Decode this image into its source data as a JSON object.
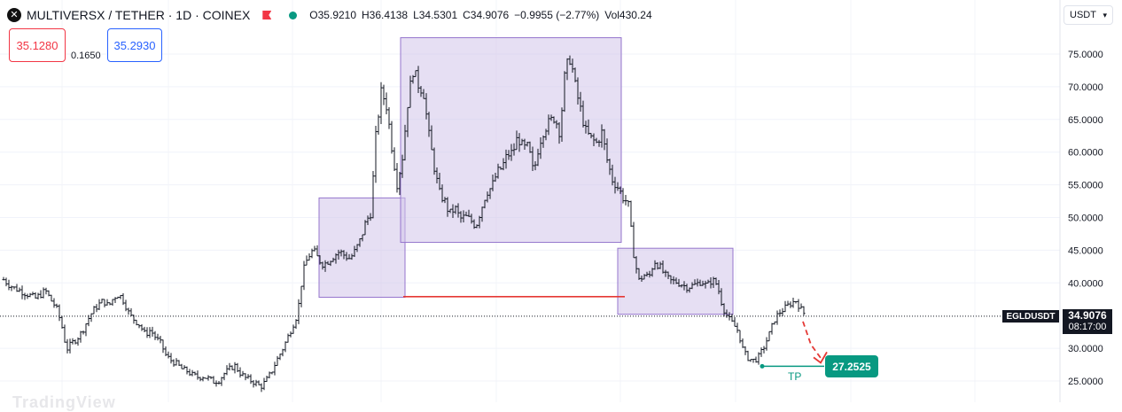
{
  "header": {
    "title": "MULTIVERSX / TETHER · 1D · COINEX",
    "logo_icon": "multiversx-logo-icon",
    "ohlc": {
      "o": "O35.9210",
      "h": "H36.4138",
      "l": "L34.5301",
      "c": "C34.9076",
      "chg": "−0.9955 (−2.77%)",
      "vol": "Vol430.24"
    }
  },
  "trade": {
    "sell": "35.1280",
    "spread": "0.1650",
    "buy": "35.2930"
  },
  "currency": {
    "label": "USDT",
    "icon": "chevron-down-icon"
  },
  "symbol_label": "EGLDUSDT",
  "last_price": "34.9076",
  "countdown": "08:17:00",
  "tp_price": "27.2525",
  "tp_label": "TP",
  "watermark": "TradingView",
  "colors": {
    "up": "#089981",
    "down": "#f23645",
    "box_fill": "#d1c4e9",
    "box_stroke": "#9575cd",
    "line": "#e53935",
    "bar": "#131722"
  },
  "chart_data": {
    "type": "ohlc",
    "y_ticks": [
      75,
      70,
      65,
      60,
      55,
      50,
      45,
      40,
      30,
      25
    ],
    "y_tick_labels": [
      "75.0000",
      "70.0000",
      "65.0000",
      "60.0000",
      "55.0000",
      "50.0000",
      "45.0000",
      "40.0000",
      "30.0000",
      "25.0000"
    ],
    "ylim": [
      24,
      80
    ],
    "last_close": 34.9076,
    "price_path": [
      40.5,
      39.8,
      39.2,
      38.9,
      38.5,
      38.1,
      37.6,
      38.2,
      38.8,
      37.4,
      36.3,
      33.8,
      29.8,
      30.8,
      31.5,
      32.6,
      34.3,
      35.7,
      36.6,
      37.3,
      36.4,
      37.8,
      38.3,
      37.1,
      35.1,
      34.3,
      33.5,
      32.1,
      32.8,
      31.6,
      30.7,
      28.8,
      28.1,
      27.6,
      26.8,
      26.5,
      25.9,
      25.6,
      25.7,
      25.4,
      24.9,
      25.1,
      26.1,
      26.8,
      27.4,
      26.3,
      25.5,
      25.1,
      24.7,
      24.1,
      25.0,
      26.3,
      28.1,
      29.6,
      31.4,
      33.3,
      35.2,
      41.5,
      44.0,
      45.0,
      43.6,
      42.8,
      43.5,
      44.2,
      44.8,
      44.2,
      43.7,
      44.9,
      46.6,
      49.3,
      50.8,
      63.2,
      69.4,
      67.0,
      60.7,
      55.1,
      59.3,
      67.5,
      72.6,
      70.4,
      69.3,
      62.8,
      58.0,
      53.8,
      52.6,
      50.5,
      51.5,
      49.8,
      50.1,
      49.6,
      48.7,
      51.3,
      53.9,
      54.6,
      56.8,
      57.7,
      59.6,
      59.9,
      62.4,
      60.5,
      60.8,
      56.6,
      61.2,
      63.6,
      64.5,
      65.4,
      63.0,
      72.3,
      74.6,
      69.7,
      66.3,
      63.0,
      62.0,
      61.4,
      63.0,
      58.8,
      55.8,
      54.7,
      53.1,
      52.2,
      44.8,
      40.3,
      41.2,
      40.9,
      43.4,
      42.5,
      41.2,
      40.3,
      40.2,
      39.9,
      39.4,
      39.5,
      39.8,
      40.3,
      39.5,
      40.5,
      39.7,
      36.4,
      34.7,
      33.7,
      32.6,
      29.4,
      28.4,
      28.1,
      28.8,
      30.4,
      32.4,
      34.6,
      35.6,
      36.2,
      36.9,
      37.3,
      35.9,
      34.9
    ],
    "boxes": [
      {
        "p1": 53.0,
        "p2": 37.8
      },
      {
        "p1": 77.5,
        "p2": 46.2
      },
      {
        "p1": 45.3,
        "p2": 35.2
      }
    ],
    "support_level": 37.9,
    "tp_level": 27.2525
  }
}
